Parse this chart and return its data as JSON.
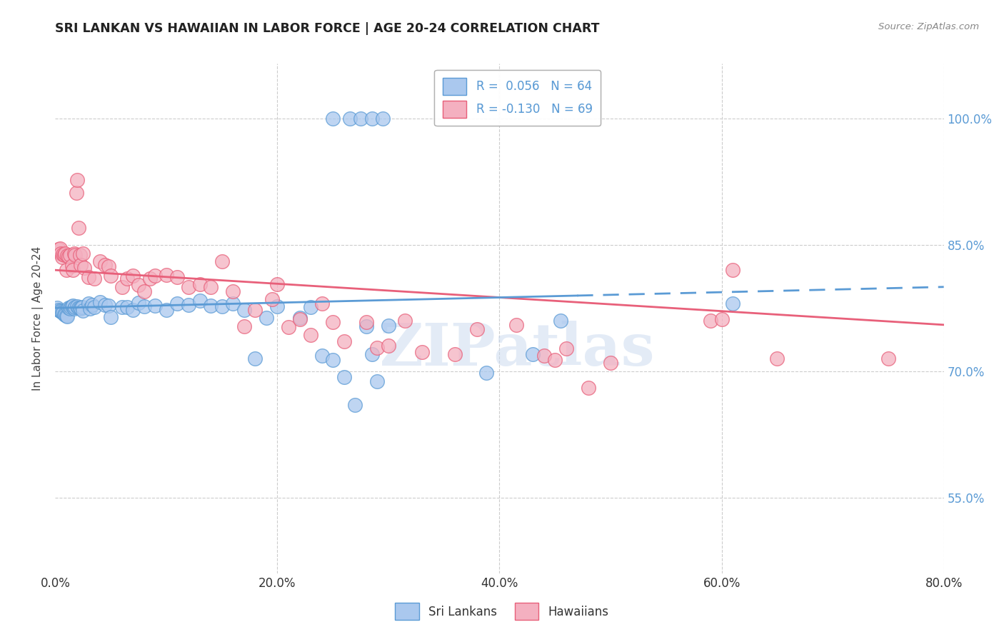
{
  "title": "SRI LANKAN VS HAWAIIAN IN LABOR FORCE | AGE 20-24 CORRELATION CHART",
  "source": "Source: ZipAtlas.com",
  "xlabel_ticks": [
    "0.0%",
    "20.0%",
    "40.0%",
    "60.0%",
    "80.0%"
  ],
  "xlabel_tick_vals": [
    0.0,
    0.2,
    0.4,
    0.6,
    0.8
  ],
  "ylabel_ticks": [
    "55.0%",
    "70.0%",
    "85.0%",
    "100.0%"
  ],
  "ylabel_tick_vals": [
    0.55,
    0.7,
    0.85,
    1.0
  ],
  "ylabel": "In Labor Force | Age 20-24",
  "xmin": 0.0,
  "xmax": 0.8,
  "ymin": 0.46,
  "ymax": 1.065,
  "sri_lankan_color": "#aac8ee",
  "hawaiian_color": "#f4b0c0",
  "sri_lankan_R": 0.056,
  "sri_lankan_N": 64,
  "hawaiian_R": -0.13,
  "hawaiian_N": 69,
  "sri_lankan_scatter": [
    [
      0.002,
      0.775
    ],
    [
      0.003,
      0.773
    ],
    [
      0.004,
      0.772
    ],
    [
      0.005,
      0.771
    ],
    [
      0.006,
      0.77
    ],
    [
      0.007,
      0.769
    ],
    [
      0.008,
      0.768
    ],
    [
      0.009,
      0.767
    ],
    [
      0.01,
      0.766
    ],
    [
      0.011,
      0.765
    ],
    [
      0.012,
      0.775
    ],
    [
      0.013,
      0.774
    ],
    [
      0.014,
      0.776
    ],
    [
      0.015,
      0.777
    ],
    [
      0.016,
      0.778
    ],
    [
      0.017,
      0.774
    ],
    [
      0.018,
      0.776
    ],
    [
      0.02,
      0.777
    ],
    [
      0.021,
      0.775
    ],
    [
      0.022,
      0.775
    ],
    [
      0.023,
      0.774
    ],
    [
      0.024,
      0.776
    ],
    [
      0.025,
      0.772
    ],
    [
      0.03,
      0.78
    ],
    [
      0.031,
      0.774
    ],
    [
      0.033,
      0.779
    ],
    [
      0.035,
      0.776
    ],
    [
      0.04,
      0.782
    ],
    [
      0.045,
      0.779
    ],
    [
      0.048,
      0.778
    ],
    [
      0.05,
      0.764
    ],
    [
      0.06,
      0.776
    ],
    [
      0.065,
      0.776
    ],
    [
      0.07,
      0.773
    ],
    [
      0.075,
      0.781
    ],
    [
      0.08,
      0.777
    ],
    [
      0.09,
      0.778
    ],
    [
      0.1,
      0.773
    ],
    [
      0.11,
      0.78
    ],
    [
      0.12,
      0.779
    ],
    [
      0.13,
      0.784
    ],
    [
      0.14,
      0.778
    ],
    [
      0.15,
      0.777
    ],
    [
      0.16,
      0.78
    ],
    [
      0.17,
      0.773
    ],
    [
      0.18,
      0.715
    ],
    [
      0.19,
      0.763
    ],
    [
      0.2,
      0.777
    ],
    [
      0.22,
      0.763
    ],
    [
      0.23,
      0.776
    ],
    [
      0.24,
      0.718
    ],
    [
      0.25,
      0.713
    ],
    [
      0.26,
      0.693
    ],
    [
      0.27,
      0.66
    ],
    [
      0.28,
      0.753
    ],
    [
      0.285,
      0.72
    ],
    [
      0.29,
      0.688
    ],
    [
      0.3,
      0.754
    ],
    [
      0.25,
      1.0
    ],
    [
      0.265,
      1.0
    ],
    [
      0.275,
      1.0
    ],
    [
      0.285,
      1.0
    ],
    [
      0.295,
      1.0
    ],
    [
      0.388,
      0.698
    ],
    [
      0.43,
      0.72
    ],
    [
      0.455,
      0.76
    ],
    [
      0.61,
      0.78
    ]
  ],
  "hawaiian_scatter": [
    [
      0.003,
      0.845
    ],
    [
      0.004,
      0.846
    ],
    [
      0.005,
      0.84
    ],
    [
      0.006,
      0.835
    ],
    [
      0.007,
      0.839
    ],
    [
      0.008,
      0.838
    ],
    [
      0.009,
      0.84
    ],
    [
      0.01,
      0.82
    ],
    [
      0.011,
      0.837
    ],
    [
      0.012,
      0.836
    ],
    [
      0.013,
      0.838
    ],
    [
      0.015,
      0.825
    ],
    [
      0.016,
      0.82
    ],
    [
      0.017,
      0.84
    ],
    [
      0.018,
      0.838
    ],
    [
      0.019,
      0.912
    ],
    [
      0.02,
      0.927
    ],
    [
      0.021,
      0.87
    ],
    [
      0.022,
      0.838
    ],
    [
      0.023,
      0.826
    ],
    [
      0.025,
      0.84
    ],
    [
      0.026,
      0.823
    ],
    [
      0.03,
      0.812
    ],
    [
      0.035,
      0.81
    ],
    [
      0.04,
      0.83
    ],
    [
      0.045,
      0.826
    ],
    [
      0.048,
      0.824
    ],
    [
      0.05,
      0.813
    ],
    [
      0.06,
      0.8
    ],
    [
      0.065,
      0.81
    ],
    [
      0.07,
      0.813
    ],
    [
      0.075,
      0.802
    ],
    [
      0.08,
      0.795
    ],
    [
      0.085,
      0.81
    ],
    [
      0.09,
      0.813
    ],
    [
      0.1,
      0.814
    ],
    [
      0.11,
      0.812
    ],
    [
      0.12,
      0.8
    ],
    [
      0.13,
      0.803
    ],
    [
      0.14,
      0.8
    ],
    [
      0.15,
      0.83
    ],
    [
      0.16,
      0.795
    ],
    [
      0.17,
      0.753
    ],
    [
      0.18,
      0.773
    ],
    [
      0.195,
      0.785
    ],
    [
      0.2,
      0.803
    ],
    [
      0.21,
      0.752
    ],
    [
      0.22,
      0.762
    ],
    [
      0.23,
      0.743
    ],
    [
      0.24,
      0.78
    ],
    [
      0.25,
      0.758
    ],
    [
      0.26,
      0.735
    ],
    [
      0.28,
      0.758
    ],
    [
      0.29,
      0.728
    ],
    [
      0.3,
      0.73
    ],
    [
      0.315,
      0.76
    ],
    [
      0.33,
      0.723
    ],
    [
      0.36,
      0.72
    ],
    [
      0.38,
      0.75
    ],
    [
      0.415,
      0.755
    ],
    [
      0.44,
      0.718
    ],
    [
      0.45,
      0.713
    ],
    [
      0.46,
      0.727
    ],
    [
      0.48,
      0.68
    ],
    [
      0.5,
      0.71
    ],
    [
      0.59,
      0.76
    ],
    [
      0.6,
      0.762
    ],
    [
      0.61,
      0.82
    ],
    [
      0.65,
      0.715
    ],
    [
      0.75,
      0.715
    ]
  ],
  "sri_lankan_line_x0": 0.0,
  "sri_lankan_line_y0": 0.775,
  "sri_lankan_line_x1": 0.8,
  "sri_lankan_line_y1": 0.8,
  "sri_lankan_dash_xstart": 0.47,
  "hawaiian_line_x0": 0.0,
  "hawaiian_line_y0": 0.82,
  "hawaiian_line_x1": 0.8,
  "hawaiian_line_y1": 0.755,
  "sri_lankan_color_line": "#5b9bd5",
  "hawaiian_color_line": "#e8607a",
  "watermark": "ZIPatlas",
  "background_color": "#ffffff",
  "grid_color": "#cccccc"
}
